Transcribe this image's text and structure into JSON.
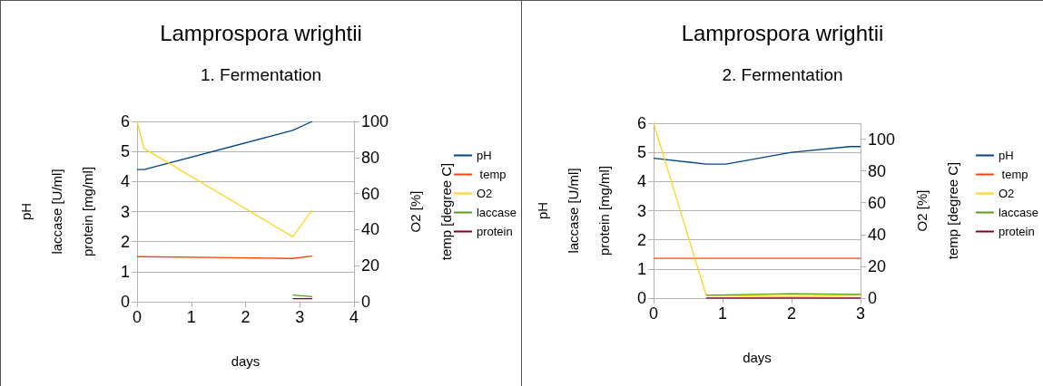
{
  "chart_data": [
    {
      "type": "line",
      "title": "Lamprospora wrightii",
      "subtitle": "1. Fermentation",
      "xlabel": "days",
      "ylabel": "pH\nlaccase [U/ml]\nprotein [mg/ml]",
      "y2label": "O2 [%]\ntemp [degree C]",
      "xlim": [
        0,
        4
      ],
      "xticks": [
        0,
        1,
        2,
        3,
        4
      ],
      "ylim": [
        0,
        6
      ],
      "yticks": [
        0,
        1,
        2,
        3,
        4,
        5,
        6
      ],
      "y2lim": [
        0,
        100
      ],
      "y2ticks": [
        0,
        20,
        40,
        60,
        80,
        100
      ],
      "grid": "y",
      "legend": "right",
      "marker": "none",
      "series": [
        {
          "name": "pH",
          "color": "#004586",
          "x": [
            0,
            0.13,
            2.87,
            3.23
          ],
          "values": [
            4.4,
            4.4,
            5.7,
            6.0
          ]
        },
        {
          "name": " temp",
          "color": "#ff420e",
          "axis": "y2",
          "x": [
            0,
            2.87,
            3.23
          ],
          "values": [
            25,
            24,
            25.3
          ]
        },
        {
          "name": "O2",
          "color": "#ffd320",
          "axis": "y2",
          "x": [
            0,
            0.13,
            2.87,
            3.23
          ],
          "values": [
            100,
            85,
            36,
            51
          ]
        },
        {
          "name": "laccase",
          "color": "#579d1c",
          "x": [
            2.87,
            3.23
          ],
          "values": [
            0.22,
            0.17
          ]
        },
        {
          "name": "protein",
          "color": "#7e0021",
          "x": [
            2.87,
            3.23
          ],
          "values": [
            0.1,
            0.1
          ]
        }
      ]
    },
    {
      "type": "line",
      "title": "Lamprospora wrightii",
      "subtitle": "2. Fermentation",
      "xlabel": "days",
      "ylabel": "pH\nlaccase [U/ml]\nprotein [mg/ml]",
      "y2label": "O2 [%]\ntemp [degree C]",
      "xlim": [
        0,
        3
      ],
      "xticks": [
        0,
        1,
        2,
        3
      ],
      "ylim": [
        0,
        6
      ],
      "yticks": [
        0,
        1,
        2,
        3,
        4,
        5,
        6
      ],
      "y2lim": [
        0,
        110
      ],
      "y2ticks": [
        0,
        20,
        40,
        60,
        80,
        100
      ],
      "grid": "y",
      "legend": "right",
      "marker": "none",
      "series": [
        {
          "name": "pH",
          "color": "#004586",
          "x": [
            0,
            0.76,
            1.05,
            2.0,
            2.85,
            3.0
          ],
          "values": [
            4.8,
            4.6,
            4.6,
            5.0,
            5.2,
            5.2
          ]
        },
        {
          "name": " temp",
          "color": "#ff420e",
          "axis": "y2",
          "x": [
            0,
            0.76,
            3.0
          ],
          "values": [
            25,
            25,
            25
          ]
        },
        {
          "name": "O2",
          "color": "#ffd320",
          "axis": "y2",
          "x": [
            0,
            0.76,
            2.0,
            3.0
          ],
          "values": [
            110,
            2,
            1,
            2
          ]
        },
        {
          "name": "laccase",
          "color": "#579d1c",
          "x": [
            0.76,
            2.0,
            3.0
          ],
          "values": [
            0.1,
            0.15,
            0.13
          ]
        },
        {
          "name": "protein",
          "color": "#7e0021",
          "x": [
            0.76,
            3.0
          ],
          "values": [
            0,
            0
          ]
        }
      ]
    }
  ]
}
